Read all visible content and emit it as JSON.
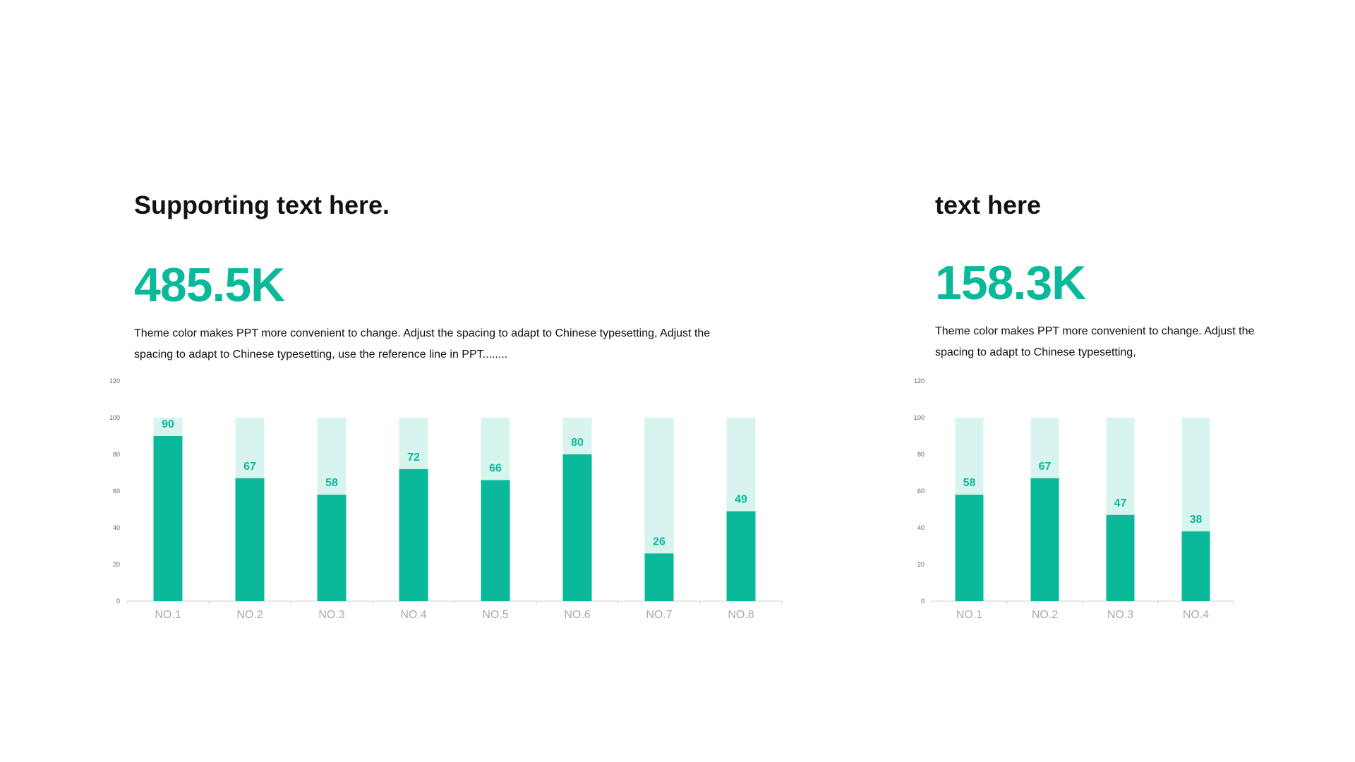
{
  "left_panel": {
    "heading": "Supporting text here.",
    "big_value": "485.5K",
    "description": "Theme color makes PPT more convenient to change. Adjust the spacing to adapt to Chinese typesetting, Adjust the spacing to adapt to Chinese typesetting, use the reference line in PPT........"
  },
  "right_panel": {
    "heading": "text here",
    "big_value": "158.3K",
    "description": "Theme color makes PPT more convenient to change. Adjust the spacing to adapt to Chinese typesetting,"
  },
  "colors": {
    "accent": "#0ab99a",
    "bar_background": "#d7f4ee",
    "axis_label": "#aaaaaa",
    "axis_line": "#d0d0d0",
    "text": "#111111"
  },
  "chart_data": [
    {
      "type": "bar",
      "categories": [
        "NO.1",
        "NO.2",
        "NO.3",
        "NO.4",
        "NO.5",
        "NO.6",
        "NO.7",
        "NO.8"
      ],
      "values": [
        90,
        67,
        58,
        72,
        66,
        80,
        26,
        49
      ],
      "background_value": 100,
      "ylim": [
        0,
        120
      ],
      "yticks": [
        0,
        20,
        40,
        60,
        80,
        100,
        120
      ],
      "grid": false,
      "data_labels": true
    },
    {
      "type": "bar",
      "categories": [
        "NO.1",
        "NO.2",
        "NO.3",
        "NO.4"
      ],
      "values": [
        58,
        67,
        47,
        38
      ],
      "background_value": 100,
      "ylim": [
        0,
        120
      ],
      "yticks": [
        0,
        20,
        40,
        60,
        80,
        100,
        120
      ],
      "grid": false,
      "data_labels": true
    }
  ]
}
